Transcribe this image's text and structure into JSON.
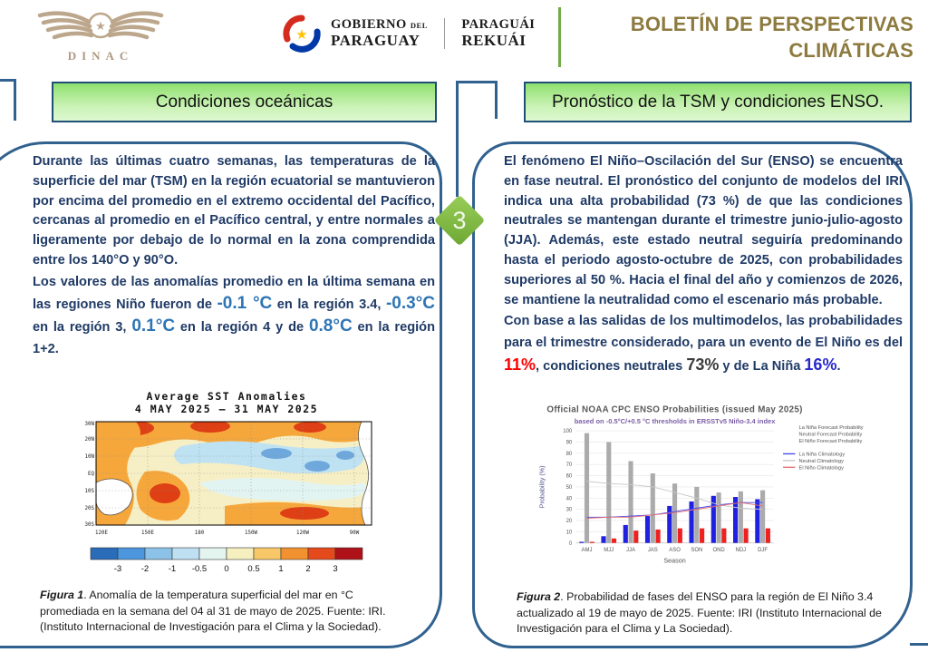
{
  "header": {
    "dinac_label": "DINAC",
    "gov": {
      "gobierno": "GOBIERNO",
      "del": "DEL",
      "paraguay": "PARAGUAY",
      "paraguai": "PARAGUÁI",
      "rekuai": "REKUÁI"
    },
    "title_line1": "BOLETÍN DE PERSPECTIVAS",
    "title_line2": "CLIMÁTICAS"
  },
  "step_badge": "3",
  "left_panel": {
    "header": "Condiciones oceánicas",
    "p1": "Durante las últimas cuatro semanas, las temperaturas de la superficie del mar (TSM) en la región ecuatorial se mantuvieron por encima del promedio en el extremo occidental del Pacífico, cercanas al promedio en el Pacífico central, y entre normales a ligeramente por debajo de lo normal en la zona comprendida entre los 140°O y 90°O.",
    "p2a": "Los valores de las anomalías promedio en la última semana en las regiones Niño fueron de ",
    "v34": "-0.1 °C",
    "p2b": " en la región 3.4, ",
    "v3": "-0.3°C",
    "p2c": " en la región 3, ",
    "v4": "0.1°C",
    "p2d": " en la región 4 y de ",
    "v12": "0.8°C",
    "p2e": " en la región 1+2.",
    "figure": {
      "title": "Average SST Anomalies",
      "subtitle": "4 MAY 2025 – 31 MAY 2025",
      "lat_labels": [
        "30N",
        "20N",
        "10N",
        "EQ",
        "10S",
        "20S",
        "30S"
      ],
      "lon_labels": [
        "120E",
        "150E",
        "180",
        "150W",
        "120W",
        "90W"
      ],
      "colorbar_labels": [
        "-3",
        "-2",
        "-1",
        "-0.5",
        "0",
        "0.5",
        "1",
        "2",
        "3"
      ],
      "colorbar_colors": [
        "#2A6CB8",
        "#4C96DE",
        "#8CC1E8",
        "#BFE0F2",
        "#E4F5F0",
        "#F6EFC0",
        "#F8C868",
        "#F1912F",
        "#E54A1C",
        "#AE1218"
      ],
      "caption_label": "Figura 1",
      "caption_text": ". Anomalía de la temperatura superficial del mar en °C promediada en la semana del 04 al 31 de mayo de 2025. Fuente: IRI. (Instituto Internacional de Investigación para el Clima y la Sociedad)."
    }
  },
  "right_panel": {
    "header": "Pronóstico de la TSM y condiciones ENSO.",
    "p1": "El fenómeno El Niño–Oscilación del Sur (ENSO) se encuentra en fase neutral. El pronóstico del conjunto de modelos del IRI indica una alta probabilidad (73 %) de que las condiciones neutrales se mantengan durante el trimestre junio-julio-agosto (JJA). Además, este estado neutral seguiría predominando hasta el periodo agosto-octubre de 2025, con probabilidades superiores al 50 %. Hacia el final del año y comienzos de 2026, se mantiene la neutralidad como el escenario más probable.",
    "p2a": "Con base a las salidas de los multimodelos, las probabilidades para el trimestre considerado, para un evento de El Niño es del ",
    "v_nino": "11%",
    "p2b": ", condiciones neutrales ",
    "v_neutral": "73%",
    "p2c": " y de La Niña ",
    "v_nina": "16%",
    "p2d": ".",
    "caption_label": "Figura 2",
    "caption_text": ". Probabilidad de fases del ENSO para la región de El Niño 3.4 actualizado al 19 de mayo de 2025. Fuente: IRI (Instituto Internacional de Investigación para el Clima y La Sociedad)."
  },
  "chart_data": {
    "type": "bar",
    "title": "Official NOAA CPC ENSO Probabilities (issued May 2025)",
    "subtitle": "based on -0.5°C/+0.5 °C thresholds in ERSSTv5 Niño-3.4 index",
    "xlabel": "Season",
    "ylabel": "Probability (%)",
    "ylim": [
      0,
      100
    ],
    "ytick_step": 10,
    "grid": true,
    "legend_position": "right",
    "categories": [
      "AMJ",
      "MJJ",
      "JJA",
      "JAS",
      "ASO",
      "SON",
      "OND",
      "NDJ",
      "DJF"
    ],
    "series": [
      {
        "name": "La Niña Forecast Probability",
        "color": "#2020E0",
        "values": [
          1,
          6,
          16,
          24,
          33,
          37,
          42,
          41,
          39
        ]
      },
      {
        "name": "Neutral Forecast Probability",
        "color": "#ABABAB",
        "values": [
          98,
          90,
          73,
          62,
          53,
          50,
          45,
          46,
          47
        ]
      },
      {
        "name": "El Niño Forecast Probability",
        "color": "#EE2020",
        "values": [
          1,
          4,
          11,
          12,
          13,
          13,
          13,
          13,
          13
        ]
      }
    ],
    "lines": [
      {
        "name": "La Niña Climatology",
        "color": "#4848E8",
        "values": [
          23,
          23,
          24,
          25,
          28,
          31,
          34,
          36,
          36
        ]
      },
      {
        "name": "Neutral Climatology",
        "color": "#C8C8C8",
        "values": [
          55,
          53,
          52,
          50,
          45,
          40,
          34,
          31,
          30
        ]
      },
      {
        "name": "El Niño Climatology",
        "color": "#E87070",
        "values": [
          22,
          23,
          23,
          25,
          27,
          30,
          33,
          36,
          33
        ]
      }
    ]
  },
  "colors": {
    "panel_border": "#31618F",
    "header_title": "#8C7A3E",
    "body_text": "#1F3A66",
    "anomaly_value": "#2E74B5",
    "nino_pct": "#FF0000",
    "neutral_pct": "#3B3B3B",
    "nina_pct": "#2929CC",
    "diamond_green": "#7CB342",
    "box_border": "#1F4E79"
  }
}
